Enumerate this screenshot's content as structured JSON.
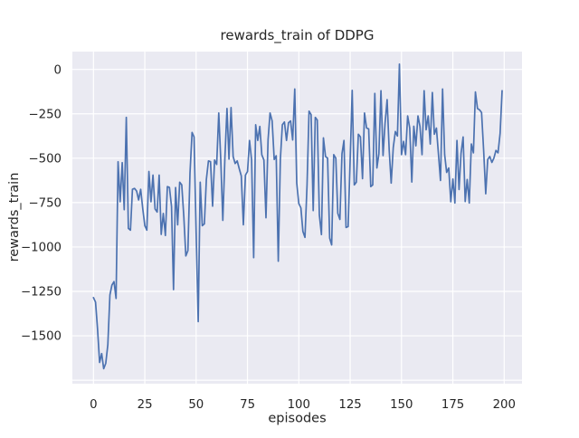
{
  "figure": {
    "background": "#ffffff"
  },
  "chart_data": {
    "type": "line",
    "title": "rewards_train of DDPG",
    "xlabel": "episodes",
    "ylabel": "rewards_train",
    "x_start": 0,
    "x_step": 1,
    "xlim": [
      -10,
      209
    ],
    "ylim": [
      -1770,
      100
    ],
    "grid": true,
    "legend": false,
    "xticks": [
      0,
      25,
      50,
      75,
      100,
      125,
      150,
      175,
      200
    ],
    "xtick_labels": [
      "0",
      "25",
      "50",
      "75",
      "100",
      "125",
      "150",
      "175",
      "200"
    ],
    "yticks": [
      0,
      -250,
      -500,
      -750,
      -1000,
      -1250,
      -1500
    ],
    "ytick_labels": [
      "0",
      "−250",
      "−500",
      "−750",
      "−1000",
      "−1250",
      "−1500"
    ],
    "ygrid_extra": [
      -1750
    ],
    "series": [
      {
        "name": "rewards_train",
        "color": "#4C72B0",
        "values": [
          -1285,
          -1310,
          -1460,
          -1650,
          -1600,
          -1685,
          -1655,
          -1550,
          -1270,
          -1215,
          -1195,
          -1290,
          -520,
          -745,
          -525,
          -790,
          -270,
          -895,
          -905,
          -675,
          -670,
          -685,
          -735,
          -675,
          -785,
          -880,
          -905,
          -575,
          -745,
          -595,
          -786,
          -803,
          -595,
          -929,
          -811,
          -935,
          -660,
          -665,
          -772,
          -1240,
          -665,
          -875,
          -635,
          -650,
          -830,
          -1050,
          -1020,
          -585,
          -355,
          -380,
          -920,
          -1420,
          -635,
          -880,
          -870,
          -620,
          -515,
          -520,
          -770,
          -510,
          -535,
          -245,
          -505,
          -850,
          -497,
          -220,
          -505,
          -215,
          -490,
          -530,
          -515,
          -560,
          -600,
          -875,
          -595,
          -575,
          -400,
          -510,
          -1060,
          -312,
          -400,
          -321,
          -481,
          -510,
          -835,
          -397,
          -245,
          -290,
          -507,
          -486,
          -1080,
          -507,
          -312,
          -296,
          -400,
          -300,
          -290,
          -397,
          -110,
          -640,
          -755,
          -780,
          -912,
          -946,
          -650,
          -235,
          -255,
          -795,
          -270,
          -285,
          -820,
          -930,
          -385,
          -490,
          -500,
          -950,
          -988,
          -480,
          -500,
          -810,
          -845,
          -475,
          -400,
          -890,
          -885,
          -500,
          -118,
          -650,
          -635,
          -365,
          -380,
          -615,
          -245,
          -330,
          -335,
          -660,
          -650,
          -135,
          -555,
          -475,
          -120,
          -485,
          -305,
          -170,
          -455,
          -640,
          -440,
          -350,
          -375,
          30,
          -480,
          -405,
          -480,
          -262,
          -330,
          -634,
          -320,
          -430,
          -262,
          -320,
          -480,
          -120,
          -340,
          -262,
          -420,
          -130,
          -365,
          -330,
          -480,
          -625,
          -110,
          -480,
          -580,
          -555,
          -745,
          -617,
          -752,
          -400,
          -676,
          -473,
          -380,
          -744,
          -620,
          -752,
          -420,
          -470,
          -127,
          -220,
          -228,
          -243,
          -456,
          -700,
          -507,
          -490,
          -524,
          -500,
          -456,
          -470,
          -360,
          -120
        ]
      }
    ]
  },
  "style": {
    "axes_background": "#EAEAF2",
    "grid_color": "#FFFFFF",
    "text_color": "#262626",
    "line_color": "#4C72B0"
  }
}
